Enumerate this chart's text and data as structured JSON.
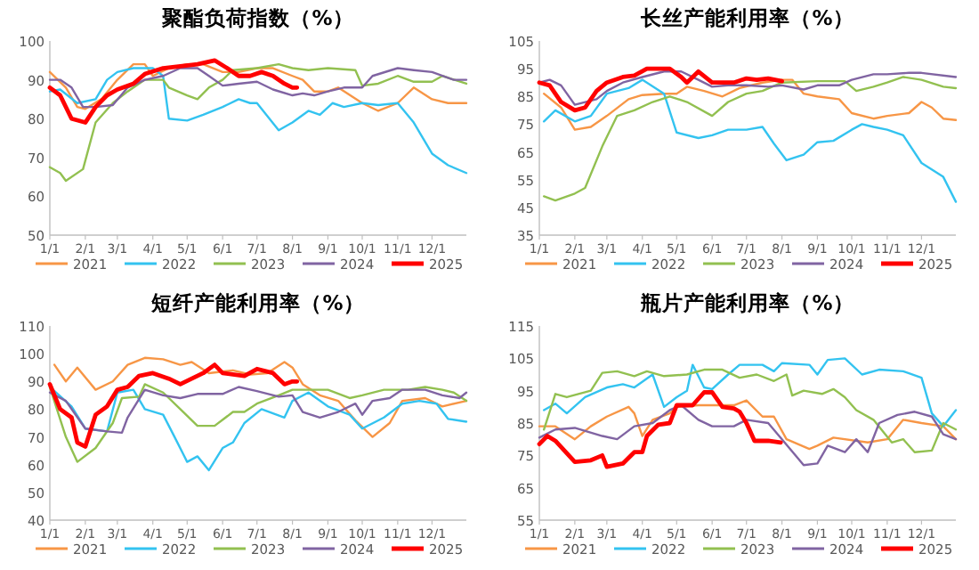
{
  "chart_data": [
    {
      "type": "line",
      "title": "聚酯负荷指数（%）",
      "legend": "bottom",
      "marker": "none",
      "line_style": "solid",
      "xlim": [
        "--01-01",
        "--12-31"
      ],
      "xticks": [
        {
          "value": "--01-01",
          "label": "1/1"
        },
        {
          "value": "--02-01",
          "label": "2/1"
        },
        {
          "value": "--03-01",
          "label": "3/1"
        },
        {
          "value": "--04-01",
          "label": "4/1"
        },
        {
          "value": "--05-01",
          "label": "5/1"
        },
        {
          "value": "--06-01",
          "label": "6/1"
        },
        {
          "value": "--07-01",
          "label": "7/1"
        },
        {
          "value": "--08-01",
          "label": "8/1"
        },
        {
          "value": "--09-01",
          "label": "9/1"
        },
        {
          "value": "--10-01",
          "label": "10/1"
        },
        {
          "value": "--11-01",
          "label": "11/1"
        },
        {
          "value": "--12-01",
          "label": "12/1"
        }
      ],
      "ylim": [
        50,
        100
      ],
      "yticks": [
        50,
        60,
        70,
        80,
        90,
        100
      ],
      "series": [
        {
          "name": "2021",
          "color": "#f79646",
          "x": [
            "--01-01",
            "--01-15",
            "--01-25",
            "--02-01",
            "--02-15",
            "--03-01",
            "--03-15",
            "--03-25",
            "--04-01",
            "--04-15",
            "--05-01",
            "--05-15",
            "--06-01",
            "--06-15",
            "--07-01",
            "--07-15",
            "--08-01",
            "--08-10",
            "--08-20",
            "--09-01",
            "--09-10",
            "--10-01",
            "--10-15",
            "--11-01",
            "--11-15",
            "--12-01",
            "--12-15",
            "--12-31"
          ],
          "values": [
            92,
            88,
            83,
            82.5,
            85,
            90,
            94,
            94,
            91,
            93,
            94,
            94,
            92,
            92,
            93,
            93,
            91,
            90,
            87,
            87,
            88,
            84,
            82,
            84,
            88,
            85,
            84,
            84
          ]
        },
        {
          "name": "2022",
          "color": "#33c3f0",
          "x": [
            "--01-01",
            "--01-10",
            "--01-25",
            "--02-10",
            "--02-20",
            "--03-01",
            "--03-15",
            "--04-01",
            "--04-10",
            "--04-15",
            "--05-01",
            "--05-15",
            "--06-01",
            "--06-15",
            "--06-25",
            "--07-01",
            "--07-20",
            "--08-01",
            "--08-15",
            "--08-25",
            "--09-05",
            "--09-15",
            "--10-01",
            "--10-15",
            "--11-01",
            "--11-15",
            "--12-01",
            "--12-15",
            "--12-31"
          ],
          "values": [
            87,
            87.5,
            84,
            85,
            90,
            92,
            93,
            93,
            91,
            80,
            79.5,
            81,
            83,
            85,
            84,
            84,
            77,
            79,
            82,
            81,
            84,
            83,
            84,
            83.5,
            84,
            79,
            71,
            68,
            66
          ]
        },
        {
          "name": "2023",
          "color": "#92c050",
          "x": [
            "--01-01",
            "--01-10",
            "--01-15",
            "--01-30",
            "--02-10",
            "--02-25",
            "--03-10",
            "--03-25",
            "--04-10",
            "--04-15",
            "--05-01",
            "--05-10",
            "--05-20",
            "--06-01",
            "--06-10",
            "--07-01",
            "--07-20",
            "--08-01",
            "--08-15",
            "--09-01",
            "--09-25",
            "--10-01",
            "--10-15",
            "--11-01",
            "--11-15",
            "--12-01",
            "--12-10",
            "--12-31"
          ],
          "values": [
            67.5,
            66,
            64,
            67,
            79,
            84,
            87,
            90,
            90,
            88,
            86,
            85,
            88,
            90,
            92.5,
            93,
            94,
            93,
            92.5,
            93,
            92.5,
            88.5,
            89,
            91,
            89.5,
            89.5,
            91,
            89
          ]
        },
        {
          "name": "2024",
          "color": "#8064a2",
          "x": [
            "--01-01",
            "--01-10",
            "--01-20",
            "--01-30",
            "--02-10",
            "--02-25",
            "--03-10",
            "--03-25",
            "--04-10",
            "--04-25",
            "--05-10",
            "--05-20",
            "--06-01",
            "--06-15",
            "--07-01",
            "--07-15",
            "--08-01",
            "--08-10",
            "--08-20",
            "--09-01",
            "--09-15",
            "--10-01",
            "--10-10",
            "--11-01",
            "--11-15",
            "--12-01",
            "--12-20",
            "--12-31"
          ],
          "values": [
            90,
            90,
            88,
            83,
            83,
            83.5,
            88,
            90,
            91,
            93,
            93,
            91,
            88.5,
            89,
            89.5,
            87.5,
            86,
            86.5,
            86,
            87,
            88,
            88,
            91,
            93,
            92.5,
            92,
            90,
            90
          ]
        },
        {
          "name": "2025",
          "color": "#ff0000",
          "x": [
            "--01-01",
            "--01-10",
            "--01-20",
            "--02-01",
            "--02-10",
            "--02-20",
            "--03-01",
            "--03-15",
            "--03-25",
            "--04-10",
            "--04-25",
            "--05-10",
            "--05-25",
            "--06-05",
            "--06-15",
            "--06-25",
            "--07-05",
            "--07-15",
            "--07-25",
            "--08-01",
            "--08-05"
          ],
          "values": [
            88,
            86,
            80,
            79,
            83,
            86,
            87.5,
            89,
            91.5,
            93,
            93.5,
            94,
            95,
            93,
            91,
            91,
            92,
            91,
            89,
            88,
            88
          ]
        }
      ]
    },
    {
      "type": "line",
      "title": "长丝产能利用率（%）",
      "legend": "bottom",
      "marker": "none",
      "line_style": "solid",
      "xlim": [
        "--01-01",
        "--12-31"
      ],
      "xticks": [
        {
          "value": "--01-01",
          "label": "1/1"
        },
        {
          "value": "--02-01",
          "label": "2/1"
        },
        {
          "value": "--03-01",
          "label": "3/1"
        },
        {
          "value": "--04-01",
          "label": "4/1"
        },
        {
          "value": "--05-01",
          "label": "5/1"
        },
        {
          "value": "--06-01",
          "label": "6/1"
        },
        {
          "value": "--07-01",
          "label": "7/1"
        },
        {
          "value": "--08-01",
          "label": "8/1"
        },
        {
          "value": "--09-01",
          "label": "9/1"
        },
        {
          "value": "--10-01",
          "label": "10/1"
        },
        {
          "value": "--11-01",
          "label": "11/1"
        },
        {
          "value": "--12-01",
          "label": "12/1"
        }
      ],
      "ylim": [
        35,
        105
      ],
      "yticks": [
        35,
        45,
        55,
        65,
        75,
        85,
        95,
        105
      ],
      "series": [
        {
          "name": "2021",
          "color": "#f79646",
          "x": [
            "--01-05",
            "--01-20",
            "--02-01",
            "--02-15",
            "--03-01",
            "--03-20",
            "--04-01",
            "--04-20",
            "--05-01",
            "--05-10",
            "--05-25",
            "--06-10",
            "--06-25",
            "--07-15",
            "--08-01",
            "--08-10",
            "--08-20",
            "--09-01",
            "--09-20",
            "--10-01",
            "--10-20",
            "--11-01",
            "--11-20",
            "--12-01",
            "--12-10",
            "--12-20",
            "--12-31"
          ],
          "values": [
            86,
            81,
            73,
            74,
            78,
            84,
            85.5,
            86,
            86,
            88.5,
            87,
            85,
            88,
            90,
            91,
            91,
            86,
            85,
            84,
            79,
            77,
            78,
            79,
            83,
            81,
            77,
            76.5
          ]
        },
        {
          "name": "2022",
          "color": "#33c3f0",
          "x": [
            "--01-05",
            "--01-15",
            "--02-01",
            "--02-15",
            "--03-01",
            "--03-20",
            "--04-01",
            "--04-20",
            "--05-01",
            "--05-20",
            "--06-01",
            "--06-15",
            "--07-01",
            "--07-15",
            "--07-25",
            "--08-05",
            "--08-20",
            "--09-01",
            "--09-15",
            "--10-01",
            "--10-10",
            "--10-20",
            "--11-01",
            "--11-15",
            "--12-01",
            "--12-20",
            "--12-31"
          ],
          "values": [
            76,
            80,
            76,
            78,
            86,
            88,
            91,
            86,
            72,
            70,
            71,
            73,
            73,
            74,
            68,
            62,
            64,
            68.5,
            69,
            73,
            75,
            74,
            73,
            71,
            61,
            56,
            47
          ]
        },
        {
          "name": "2023",
          "color": "#92c050",
          "x": [
            "--01-05",
            "--01-15",
            "--02-01",
            "--02-10",
            "--02-25",
            "--03-10",
            "--03-25",
            "--04-10",
            "--04-25",
            "--05-10",
            "--06-01",
            "--06-15",
            "--07-01",
            "--07-15",
            "--08-01",
            "--09-01",
            "--09-25",
            "--10-05",
            "--10-20",
            "--11-01",
            "--11-15",
            "--12-01",
            "--12-20",
            "--12-31"
          ],
          "values": [
            49,
            47.5,
            50,
            52,
            67,
            78,
            80,
            83,
            85,
            83,
            78,
            83,
            86,
            87,
            90,
            90.5,
            90.5,
            87,
            88.5,
            90,
            92,
            91,
            88.5,
            88
          ]
        },
        {
          "name": "2024",
          "color": "#8064a2",
          "x": [
            "--01-01",
            "--01-10",
            "--01-20",
            "--02-01",
            "--02-20",
            "--03-01",
            "--03-15",
            "--04-01",
            "--04-20",
            "--05-05",
            "--05-20",
            "--06-01",
            "--06-15",
            "--07-01",
            "--07-20",
            "--08-01",
            "--08-20",
            "--09-01",
            "--09-20",
            "--10-01",
            "--10-20",
            "--11-01",
            "--11-20",
            "--12-01",
            "--12-31"
          ],
          "values": [
            90,
            91,
            89,
            82,
            84,
            87,
            90,
            92,
            94,
            94,
            91,
            88.5,
            89,
            89,
            88.5,
            89,
            87.5,
            89,
            89,
            91,
            93,
            93,
            93.5,
            93.5,
            92
          ]
        },
        {
          "name": "2025",
          "color": "#ff0000",
          "x": [
            "--01-01",
            "--01-10",
            "--01-20",
            "--02-01",
            "--02-10",
            "--02-20",
            "--03-01",
            "--03-15",
            "--03-25",
            "--04-05",
            "--04-25",
            "--05-05",
            "--05-10",
            "--05-20",
            "--06-01",
            "--06-20",
            "--07-01",
            "--07-10",
            "--07-20",
            "--08-01"
          ],
          "values": [
            90,
            89,
            83,
            80,
            81,
            87,
            90,
            92,
            92.5,
            95,
            95,
            92,
            90,
            94,
            90,
            90,
            91.5,
            91,
            91.5,
            90.5
          ]
        }
      ]
    },
    {
      "type": "line",
      "title": "短纤产能利用率（%）",
      "legend": "bottom",
      "marker": "none",
      "line_style": "solid",
      "xlim": [
        "--01-01",
        "--12-31"
      ],
      "xticks": [
        {
          "value": "--01-01",
          "label": "1/1"
        },
        {
          "value": "--02-01",
          "label": "2/1"
        },
        {
          "value": "--03-01",
          "label": "3/1"
        },
        {
          "value": "--04-01",
          "label": "4/1"
        },
        {
          "value": "--05-01",
          "label": "5/1"
        },
        {
          "value": "--06-01",
          "label": "6/1"
        },
        {
          "value": "--07-01",
          "label": "7/1"
        },
        {
          "value": "--08-01",
          "label": "8/1"
        },
        {
          "value": "--09-01",
          "label": "9/1"
        },
        {
          "value": "--10-01",
          "label": "10/1"
        },
        {
          "value": "--11-01",
          "label": "11/1"
        },
        {
          "value": "--12-01",
          "label": "12/1"
        }
      ],
      "ylim": [
        40,
        110
      ],
      "yticks": [
        40,
        50,
        60,
        70,
        80,
        90,
        100,
        110
      ],
      "series": [
        {
          "name": "2021",
          "color": "#f79646",
          "x": [
            "--01-05",
            "--01-15",
            "--01-25",
            "--02-10",
            "--02-25",
            "--03-10",
            "--03-25",
            "--04-10",
            "--04-25",
            "--05-05",
            "--05-20",
            "--06-10",
            "--06-25",
            "--07-10",
            "--07-25",
            "--08-01",
            "--08-10",
            "--08-25",
            "--09-10",
            "--09-25",
            "--10-10",
            "--10-25",
            "--11-05",
            "--11-25",
            "--12-10",
            "--12-31"
          ],
          "values": [
            96,
            90,
            95,
            87,
            90,
            96,
            98.5,
            98,
            96,
            97,
            93,
            94,
            92.5,
            93,
            97,
            95,
            89,
            85,
            83,
            76,
            70,
            75,
            83,
            84,
            81,
            83
          ]
        },
        {
          "name": "2022",
          "color": "#33c3f0",
          "x": [
            "--01-01",
            "--01-20",
            "--02-01",
            "--02-20",
            "--03-01",
            "--03-15",
            "--03-25",
            "--04-10",
            "--04-20",
            "--05-01",
            "--05-10",
            "--05-20",
            "--06-01",
            "--06-10",
            "--06-20",
            "--07-05",
            "--07-25",
            "--08-01",
            "--08-15",
            "--09-01",
            "--09-20",
            "--10-01",
            "--10-20",
            "--11-05",
            "--11-20",
            "--12-05",
            "--12-15",
            "--12-31"
          ],
          "values": [
            88,
            81,
            73,
            72,
            86,
            87,
            80,
            78,
            70,
            61,
            63,
            58,
            66,
            68,
            75,
            80,
            77,
            83,
            86,
            81,
            78,
            73,
            77,
            82,
            83,
            82,
            76.5,
            75.5
          ]
        },
        {
          "name": "2023",
          "color": "#92c050",
          "x": [
            "--01-01",
            "--01-15",
            "--01-25",
            "--02-10",
            "--02-25",
            "--03-05",
            "--03-20",
            "--03-25",
            "--04-10",
            "--04-25",
            "--05-10",
            "--05-25",
            "--06-10",
            "--06-20",
            "--07-01",
            "--07-20",
            "--08-01",
            "--09-01",
            "--09-20",
            "--10-01",
            "--10-20",
            "--11-10",
            "--11-25",
            "--12-10",
            "--12-20",
            "--12-31"
          ],
          "values": [
            88,
            70,
            61,
            66,
            75,
            84,
            84.5,
            89,
            86,
            80,
            74,
            74,
            79,
            79,
            82,
            85,
            87,
            87,
            84,
            85,
            87,
            87,
            88,
            87,
            86,
            83
          ]
        },
        {
          "name": "2024",
          "color": "#8064a2",
          "x": [
            "--01-01",
            "--01-15",
            "--02-01",
            "--02-20",
            "--03-05",
            "--03-10",
            "--03-25",
            "--04-10",
            "--04-25",
            "--05-10",
            "--06-01",
            "--06-15",
            "--07-01",
            "--07-20",
            "--08-01",
            "--08-10",
            "--08-25",
            "--09-10",
            "--09-25",
            "--10-01",
            "--10-10",
            "--10-25",
            "--11-05",
            "--11-25",
            "--12-10",
            "--12-25",
            "--12-31"
          ],
          "values": [
            86,
            83,
            73,
            72,
            71.5,
            77,
            87,
            85,
            84,
            85.5,
            85.5,
            88,
            86.5,
            84.5,
            85,
            79,
            77,
            79,
            82,
            78,
            83,
            84,
            87,
            87,
            85,
            84,
            86
          ]
        },
        {
          "name": "2025",
          "color": "#ff0000",
          "x": [
            "--01-01",
            "--01-10",
            "--01-20",
            "--01-25",
            "--02-01",
            "--02-10",
            "--02-20",
            "--03-01",
            "--03-10",
            "--03-20",
            "--04-01",
            "--04-15",
            "--04-25",
            "--05-05",
            "--05-15",
            "--05-25",
            "--06-01",
            "--06-20",
            "--07-01",
            "--07-15",
            "--07-25",
            "--08-01",
            "--08-05"
          ],
          "values": [
            89,
            80,
            77,
            68,
            66.5,
            78,
            81,
            87,
            88,
            92,
            93,
            91,
            89,
            91,
            93,
            96,
            93,
            92,
            94.5,
            93,
            89,
            90,
            90
          ]
        }
      ]
    },
    {
      "type": "line",
      "title": "瓶片产能利用率（%）",
      "legend": "bottom",
      "marker": "none",
      "line_style": "solid",
      "xlim": [
        "--01-01",
        "--12-31"
      ],
      "xticks": [
        {
          "value": "--01-01",
          "label": "1/1"
        },
        {
          "value": "--02-01",
          "label": "2/1"
        },
        {
          "value": "--03-01",
          "label": "3/1"
        },
        {
          "value": "--04-01",
          "label": "4/1"
        },
        {
          "value": "--05-01",
          "label": "5/1"
        },
        {
          "value": "--06-01",
          "label": "6/1"
        },
        {
          "value": "--07-01",
          "label": "7/1"
        },
        {
          "value": "--08-01",
          "label": "8/1"
        },
        {
          "value": "--09-01",
          "label": "9/1"
        },
        {
          "value": "--10-01",
          "label": "10/1"
        },
        {
          "value": "--11-01",
          "label": "11/1"
        },
        {
          "value": "--12-01",
          "label": "12/1"
        }
      ],
      "ylim": [
        55,
        115
      ],
      "yticks": [
        55,
        65,
        75,
        85,
        95,
        105,
        115
      ],
      "series": [
        {
          "name": "2021",
          "color": "#f79646",
          "x": [
            "--01-01",
            "--01-15",
            "--02-01",
            "--02-15",
            "--03-01",
            "--03-20",
            "--03-25",
            "--04-01",
            "--04-10",
            "--04-25",
            "--05-01",
            "--05-20",
            "--06-20",
            "--07-01",
            "--07-15",
            "--07-25",
            "--08-05",
            "--08-25",
            "--09-01",
            "--09-15",
            "--10-15",
            "--11-01",
            "--11-15",
            "--12-01",
            "--12-20",
            "--12-31"
          ],
          "values": [
            84,
            84,
            80,
            84,
            87,
            90,
            88,
            81,
            86,
            88,
            90,
            90.5,
            90.5,
            92,
            87,
            87,
            80,
            77,
            78,
            80.5,
            79,
            80,
            86,
            85,
            84,
            80
          ]
        },
        {
          "name": "2022",
          "color": "#33c3f0",
          "x": [
            "--01-05",
            "--01-15",
            "--01-25",
            "--02-10",
            "--03-01",
            "--03-15",
            "--03-25",
            "--04-10",
            "--04-20",
            "--05-01",
            "--05-10",
            "--05-15",
            "--05-25",
            "--06-01",
            "--06-15",
            "--06-25",
            "--07-15",
            "--07-25",
            "--08-01",
            "--08-25",
            "--09-01",
            "--09-10",
            "--09-25",
            "--10-10",
            "--10-25",
            "--11-15",
            "--12-01",
            "--12-10",
            "--12-20",
            "--12-31"
          ],
          "values": [
            89,
            91,
            88,
            93,
            96,
            97,
            96,
            100,
            90,
            93,
            95,
            103,
            96,
            95.5,
            100,
            103,
            103,
            101,
            103.5,
            103,
            100,
            104.5,
            105,
            100,
            101.5,
            101,
            99,
            88,
            84,
            89
          ]
        },
        {
          "name": "2023",
          "color": "#92c050",
          "x": [
            "--01-05",
            "--01-15",
            "--01-25",
            "--02-15",
            "--02-25",
            "--03-10",
            "--03-25",
            "--04-05",
            "--04-20",
            "--05-10",
            "--05-25",
            "--06-10",
            "--06-25",
            "--07-10",
            "--07-25",
            "--08-05",
            "--08-10",
            "--08-20",
            "--09-05",
            "--09-15",
            "--09-25",
            "--10-05",
            "--10-20",
            "--11-05",
            "--11-15",
            "--11-25",
            "--12-10",
            "--12-20",
            "--12-31"
          ],
          "values": [
            83,
            94,
            93,
            95,
            100.5,
            101,
            99.5,
            101,
            99.5,
            100,
            101.5,
            101.5,
            99,
            100,
            98,
            100,
            93.5,
            95,
            94,
            95.5,
            93,
            89,
            86,
            79,
            80,
            76,
            76.5,
            85,
            83
          ]
        },
        {
          "name": "2024",
          "color": "#8064a2",
          "x": [
            "--01-01",
            "--01-15",
            "--02-01",
            "--02-25",
            "--03-10",
            "--03-25",
            "--04-10",
            "--04-25",
            "--05-05",
            "--05-20",
            "--06-01",
            "--06-20",
            "--07-01",
            "--07-20",
            "--08-01",
            "--08-20",
            "--09-01",
            "--09-10",
            "--09-25",
            "--10-05",
            "--10-15",
            "--10-25",
            "--11-10",
            "--11-25",
            "--12-10",
            "--12-20",
            "--12-31"
          ],
          "values": [
            80.5,
            83,
            83.5,
            81,
            80,
            84,
            85,
            89,
            90.5,
            86,
            84,
            84,
            86,
            85,
            80,
            72,
            72.5,
            78,
            76,
            80,
            76,
            85,
            87.5,
            88.5,
            87,
            81.5,
            80
          ]
        },
        {
          "name": "2025",
          "color": "#ff0000",
          "x": [
            "--01-01",
            "--01-08",
            "--01-15",
            "--02-01",
            "--02-15",
            "--02-25",
            "--03-01",
            "--03-15",
            "--03-25",
            "--04-01",
            "--04-05",
            "--04-15",
            "--04-25",
            "--05-01",
            "--05-15",
            "--05-25",
            "--06-01",
            "--06-10",
            "--06-20",
            "--06-25",
            "--07-01",
            "--07-08",
            "--07-20",
            "--07-31"
          ],
          "values": [
            78.5,
            81,
            79.5,
            73,
            73.5,
            75,
            71.5,
            72.5,
            76,
            76,
            81,
            84.5,
            85,
            90.5,
            90.5,
            94.5,
            94.5,
            90,
            89.5,
            88.5,
            85,
            79.5,
            79.5,
            79
          ]
        }
      ]
    }
  ]
}
